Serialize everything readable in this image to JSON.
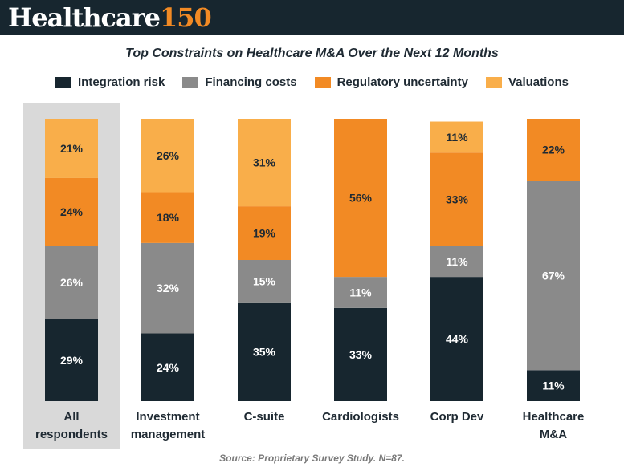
{
  "header": {
    "logo_word": "Healthcare",
    "logo_number": "150"
  },
  "chart_data": {
    "type": "bar",
    "stacked": true,
    "title": "Top Constraints on Healthcare M&A Over the Next 12 Months",
    "categories": [
      "All respondents",
      "Investment management",
      "C-suite",
      "Cardiologists",
      "Corp Dev",
      "Healthcare M&A"
    ],
    "category_label_lines": [
      [
        "All",
        "respondents"
      ],
      [
        "Investment",
        "management"
      ],
      [
        "C-suite"
      ],
      [
        "Cardiologists"
      ],
      [
        "Corp Dev"
      ],
      [
        "Healthcare",
        "M&A"
      ]
    ],
    "highlighted_category": "All respondents",
    "series": [
      {
        "name": "Integration risk",
        "color": "#17262f",
        "values": [
          29,
          24,
          35,
          33,
          44,
          11
        ]
      },
      {
        "name": "Financing costs",
        "color": "#8a8a8a",
        "values": [
          26,
          32,
          15,
          11,
          11,
          67
        ]
      },
      {
        "name": "Regulatory uncertainty",
        "color": "#f28a24",
        "values": [
          24,
          18,
          19,
          56,
          33,
          22
        ]
      },
      {
        "name": "Valuations",
        "color": "#f9ae4a",
        "values": [
          21,
          26,
          31,
          null,
          11,
          null
        ]
      }
    ],
    "value_suffix": "%",
    "ylim": [
      0,
      100
    ],
    "grid": false,
    "legend_position": "top",
    "source": "Source: Proprietary Survey Study. N=87."
  }
}
